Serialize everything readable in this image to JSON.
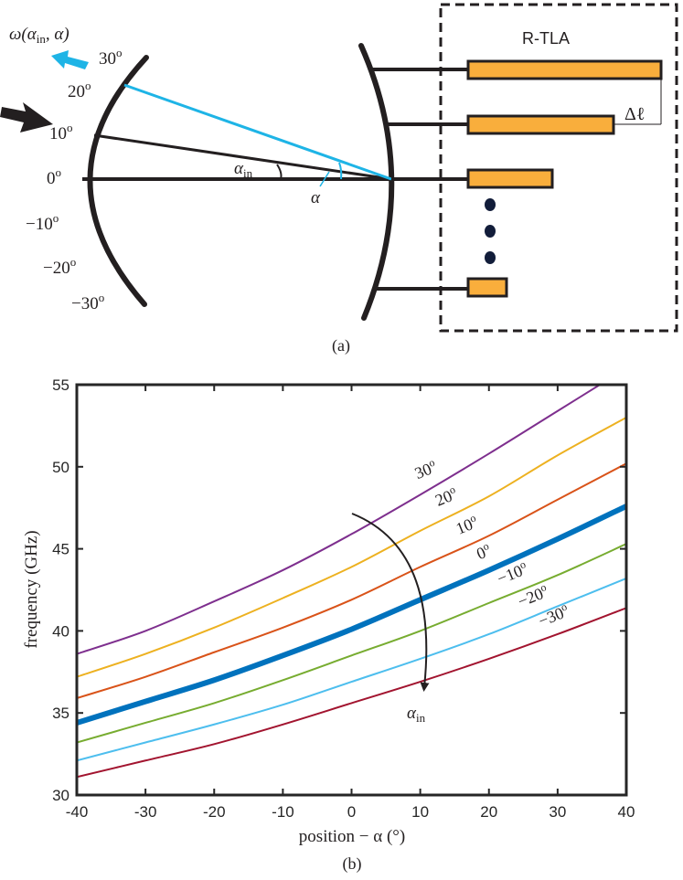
{
  "panel_a": {
    "caption": "(a)",
    "output_label": "ω(α",
    "output_label_sub": "in",
    "output_label_tail": ", α)",
    "rtla_label": "R-TLA",
    "delta_label": "Δℓ",
    "alpha_in_label": "α",
    "alpha_in_sub": "in",
    "alpha_label": "α",
    "left_angles": [
      {
        "base": "30",
        "sup": "o"
      },
      {
        "base": "20",
        "sup": "o"
      },
      {
        "base": "10",
        "sup": "o"
      },
      {
        "base": "0",
        "sup": "o"
      },
      {
        "base": "−10",
        "sup": "o"
      },
      {
        "base": "−20",
        "sup": "o"
      },
      {
        "base": "−30",
        "sup": "o"
      }
    ],
    "colors": {
      "line": "#231f20",
      "cyan": "#1eb4e6",
      "bar_fill": "#f9ae3c",
      "bar_stroke": "#231f20",
      "dot": "#121d3a"
    }
  },
  "panel_b": {
    "caption": "(b)",
    "arrow_label": "α",
    "arrow_label_sub": "in"
  },
  "chart_data": {
    "type": "line",
    "xlabel": "position − α (°)",
    "ylabel": "frequency (GHz)",
    "xlim": [
      -40,
      40
    ],
    "ylim": [
      30,
      55
    ],
    "xticks": [
      -40,
      -30,
      -20,
      -10,
      0,
      10,
      20,
      30,
      40
    ],
    "yticks": [
      30,
      35,
      40,
      45,
      50,
      55
    ],
    "grid": false,
    "x": [
      -40,
      -30,
      -20,
      -10,
      0,
      10,
      20,
      30,
      40
    ],
    "series": [
      {
        "name": "30",
        "sup": "o",
        "color": "#7e2f8e",
        "width": 2,
        "values": [
          38.6,
          40.0,
          41.8,
          43.7,
          45.9,
          48.3,
          50.8,
          53.4,
          56.0
        ]
      },
      {
        "name": "20",
        "sup": "o",
        "color": "#edb120",
        "width": 2,
        "values": [
          37.2,
          38.6,
          40.2,
          42.0,
          43.9,
          46.1,
          48.2,
          50.7,
          53.0
        ]
      },
      {
        "name": "10",
        "sup": "o",
        "color": "#d95319",
        "width": 2,
        "values": [
          35.9,
          37.2,
          38.7,
          40.2,
          41.9,
          43.9,
          45.8,
          48.0,
          50.2
        ]
      },
      {
        "name": "0",
        "sup": "o",
        "color": "#0072bd",
        "width": 6,
        "values": [
          34.4,
          35.7,
          37.0,
          38.5,
          40.1,
          41.9,
          43.7,
          45.6,
          47.6
        ]
      },
      {
        "name": "−10",
        "sup": "o",
        "color": "#77ac30",
        "width": 2,
        "values": [
          33.2,
          34.4,
          35.6,
          37.0,
          38.5,
          40.0,
          41.7,
          43.4,
          45.3
        ]
      },
      {
        "name": "−20",
        "sup": "o",
        "color": "#4dbeee",
        "width": 2,
        "values": [
          32.1,
          33.2,
          34.3,
          35.5,
          36.9,
          38.3,
          39.8,
          41.5,
          43.2
        ]
      },
      {
        "name": "−30",
        "sup": "o",
        "color": "#a2142f",
        "width": 2,
        "values": [
          31.1,
          32.1,
          33.1,
          34.3,
          35.6,
          36.9,
          38.3,
          39.8,
          41.4
        ]
      }
    ]
  }
}
